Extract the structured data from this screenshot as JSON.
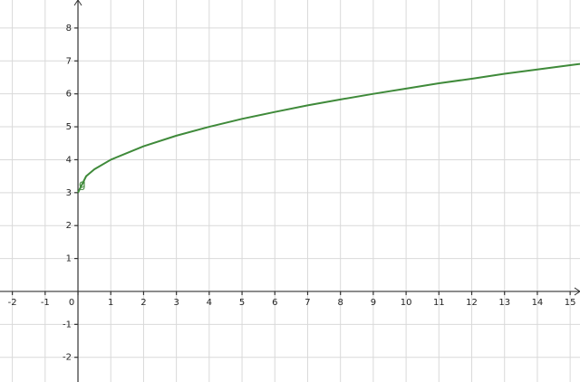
{
  "chart_data": {
    "type": "line",
    "x": [
      0,
      0.25,
      0.5,
      1,
      2,
      3,
      4,
      5,
      6,
      7,
      8,
      9,
      10,
      11,
      12,
      13,
      14,
      15,
      15.3
    ],
    "series": [
      {
        "name": "g",
        "color": "#3f8a3a",
        "values": [
          3,
          3.5,
          3.71,
          4,
          4.41,
          4.73,
          5,
          5.24,
          5.45,
          5.65,
          5.83,
          6,
          6.16,
          6.32,
          6.46,
          6.61,
          6.74,
          6.87,
          6.91
        ]
      }
    ],
    "xlim": [
      -2.376,
      15.3
    ],
    "ylim": [
      -2.75,
      8.85
    ],
    "xticks": [
      -2,
      -1,
      0,
      1,
      2,
      3,
      4,
      5,
      6,
      7,
      8,
      9,
      10,
      11,
      12,
      13,
      14,
      15
    ],
    "yticks": [
      -2,
      -1,
      1,
      2,
      3,
      4,
      5,
      6,
      7,
      8
    ],
    "grid": true
  }
}
